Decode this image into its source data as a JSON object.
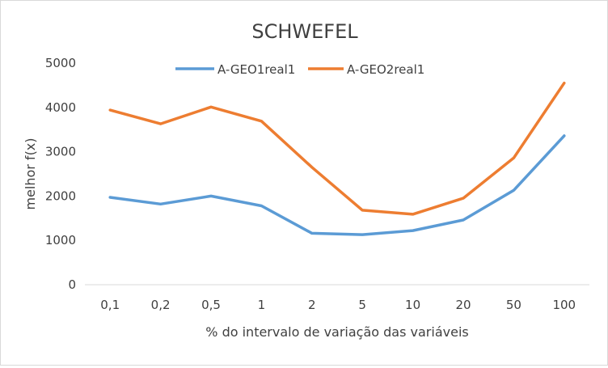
{
  "chart_data": {
    "type": "line",
    "title": "SCHWEFEL",
    "xlabel": "% do intervalo de variação das variáveis",
    "ylabel": "melhor f(x)",
    "categories": [
      "0,1",
      "0,2",
      "0,5",
      "1",
      "2",
      "5",
      "10",
      "20",
      "50",
      "100"
    ],
    "ylim": [
      0,
      5000
    ],
    "yticks": [
      "0",
      "1000",
      "2000",
      "3000",
      "4000",
      "5000"
    ],
    "grid": false,
    "legend": "top",
    "series": [
      {
        "name": "A-GEO1real1",
        "color": "#5b9bd5",
        "values": [
          1970,
          1820,
          2000,
          1780,
          1160,
          1130,
          1220,
          1460,
          2130,
          3360
        ]
      },
      {
        "name": "A-GEO2real1",
        "color": "#ed7d31",
        "values": [
          3940,
          3630,
          4010,
          3690,
          2650,
          1680,
          1590,
          1950,
          2860,
          4550
        ]
      }
    ]
  }
}
